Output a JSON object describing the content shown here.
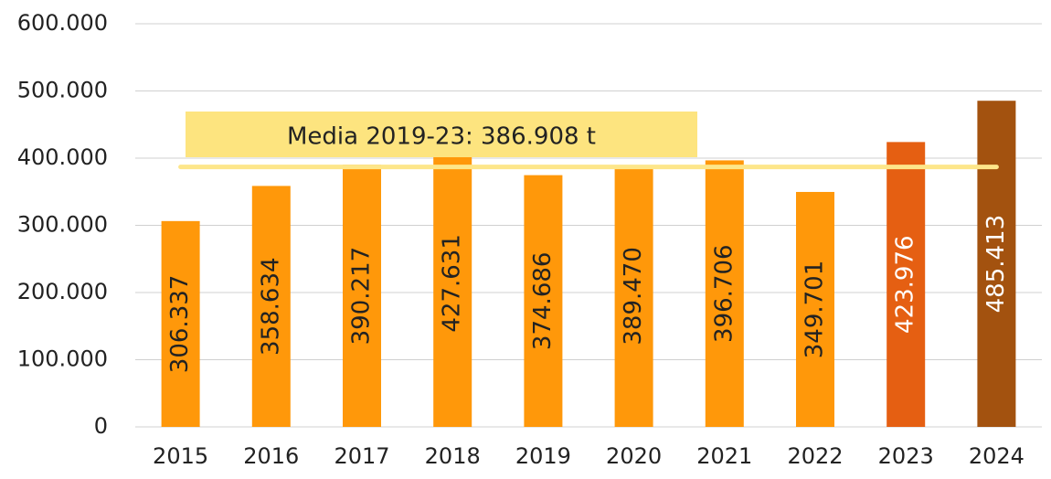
{
  "chart_data": {
    "type": "bar",
    "categories": [
      "2015",
      "2016",
      "2017",
      "2018",
      "2019",
      "2020",
      "2021",
      "2022",
      "2023",
      "2024"
    ],
    "values": [
      306337,
      358634,
      390217,
      427631,
      374686,
      389470,
      396706,
      349701,
      423976,
      485413
    ],
    "value_labels": [
      "306.337",
      "358.634",
      "390.217",
      "427.631",
      "374.686",
      "389.470",
      "396.706",
      "349.701",
      "423.976",
      "485.413"
    ],
    "colors": [
      "#ff980a",
      "#ff980a",
      "#ff980a",
      "#ff980a",
      "#ff980a",
      "#ff980a",
      "#ff980a",
      "#ff980a",
      "#e55f12",
      "#a3520f"
    ],
    "value_label_colors": [
      "#222222",
      "#222222",
      "#222222",
      "#222222",
      "#222222",
      "#222222",
      "#222222",
      "#222222",
      "#ffffff",
      "#ffffff"
    ],
    "ylim": [
      0,
      600000
    ],
    "yticks": [
      0,
      {
        "value": 100000,
        "label": "100.000"
      },
      {
        "value": 200000,
        "label": "200.000"
      },
      {
        "value": 300000,
        "label": "300.000"
      },
      {
        "value": 400000,
        "label": "400.000"
      },
      {
        "value": 500000,
        "label": "500.000"
      },
      {
        "value": 600000,
        "label": "600.000"
      }
    ],
    "grid": true,
    "average": {
      "value": 386908,
      "label": "Media 2019-23: 386.908 t",
      "color": "#fde68a",
      "box_color": "#fde47f"
    }
  }
}
